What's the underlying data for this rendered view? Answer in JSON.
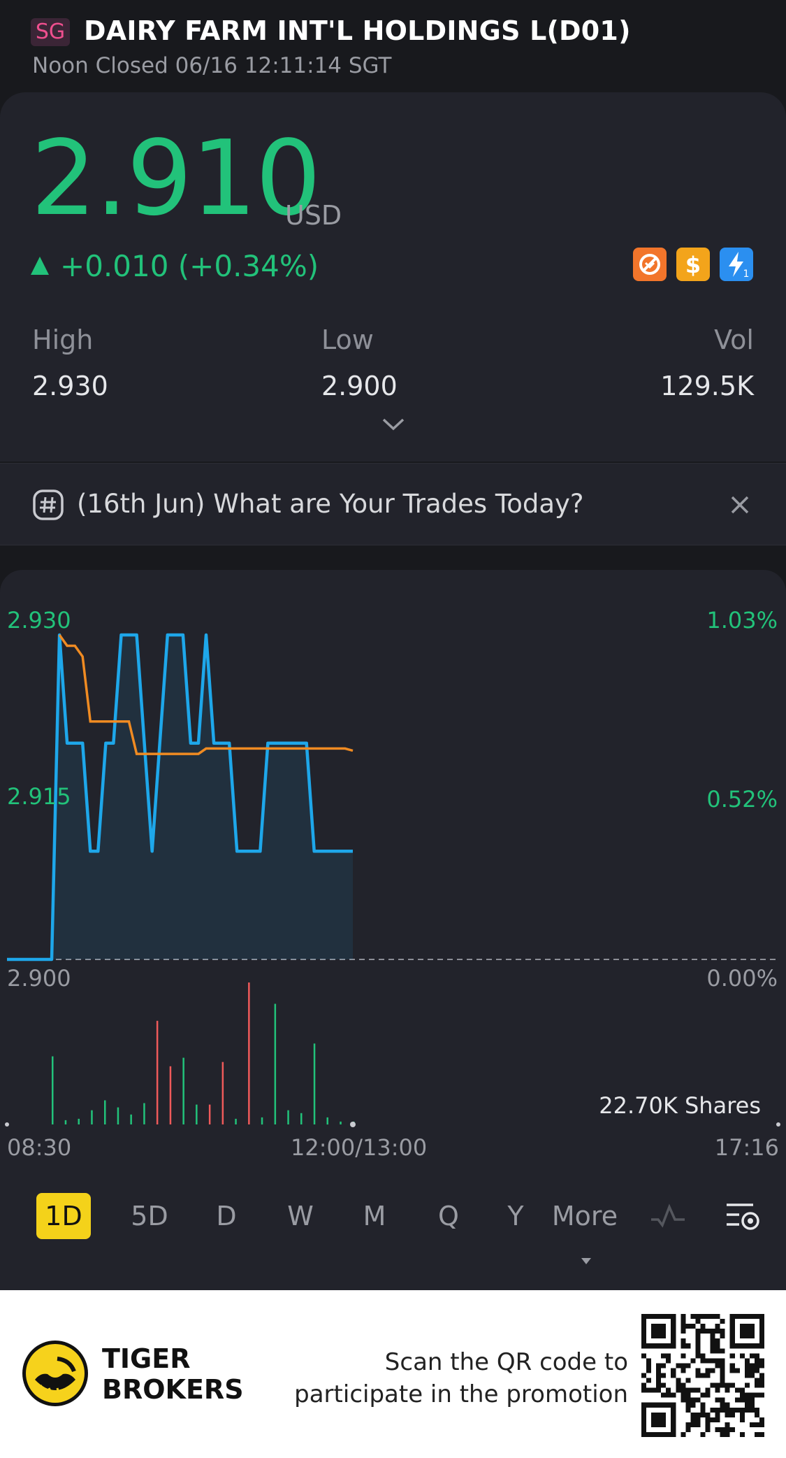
{
  "header": {
    "market_badge": "SG",
    "title": "DAIRY FARM INT'L HOLDINGS L(D01)",
    "status": "Noon Closed 06/16 12:11:14 SGT"
  },
  "quote": {
    "price": "2.910",
    "currency": "USD",
    "change": "+0.010 (+0.34%)",
    "up_color": "#22c27a",
    "badges": [
      "no-short-icon",
      "dollar-icon",
      "flash-icon"
    ]
  },
  "stats": [
    {
      "label": "High",
      "value": "2.930"
    },
    {
      "label": "Low",
      "value": "2.900"
    },
    {
      "label": "Vol",
      "value": "129.5K"
    }
  ],
  "promo_banner": {
    "text": "(16th Jun) What are Your Trades Today?"
  },
  "chart_data": {
    "type": "line",
    "y_left_ticks": [
      "2.930",
      "2.915",
      "2.900"
    ],
    "y_right_ticks": [
      "1.03%",
      "0.52%",
      "0.00%"
    ],
    "x_ticks": [
      "08:30",
      "12:00/13:00",
      "17:16"
    ],
    "ylim": [
      2.9,
      2.93
    ],
    "baseline": 2.9,
    "series": [
      {
        "color": "#1ea7ea",
        "values": [
          2.9,
          2.93,
          2.92,
          2.92,
          2.92,
          2.91,
          2.91,
          2.92,
          2.92,
          2.93,
          2.93,
          2.93,
          2.92,
          2.91,
          2.92,
          2.93,
          2.93,
          2.93,
          2.92,
          2.92,
          2.93,
          2.92,
          2.92,
          2.92,
          2.91,
          2.91,
          2.91,
          2.91,
          2.92,
          2.92,
          2.92,
          2.92,
          2.92,
          2.92,
          2.91,
          2.91,
          2.91,
          2.91,
          2.91,
          2.91
        ]
      },
      {
        "color": "#f08b22",
        "values": [
          2.9,
          2.93,
          2.929,
          2.929,
          2.928,
          2.922,
          2.922,
          2.922,
          2.922,
          2.922,
          2.922,
          2.919,
          2.919,
          2.919,
          2.919,
          2.919,
          2.919,
          2.919,
          2.919,
          2.919,
          2.9195,
          2.9195,
          2.9195,
          2.9195,
          2.9195,
          2.9195,
          2.9195,
          2.9195,
          2.9195,
          2.9195,
          2.9195,
          2.9195,
          2.9195,
          2.9195,
          2.9195,
          2.9195,
          2.9195,
          2.9195,
          2.9195,
          2.9193
        ]
      }
    ],
    "volume_label": "22.70K Shares",
    "volume_colors": {
      "up": "#22c27a",
      "down": "#ef5a5a"
    },
    "volume": [
      {
        "v": 0.48,
        "c": "up"
      },
      {
        "v": 0.03,
        "c": "up"
      },
      {
        "v": 0.04,
        "c": "up"
      },
      {
        "v": 0.1,
        "c": "up"
      },
      {
        "v": 0.17,
        "c": "up"
      },
      {
        "v": 0.12,
        "c": "up"
      },
      {
        "v": 0.07,
        "c": "up"
      },
      {
        "v": 0.15,
        "c": "up"
      },
      {
        "v": 0.73,
        "c": "down"
      },
      {
        "v": 0.41,
        "c": "down"
      },
      {
        "v": 0.47,
        "c": "up"
      },
      {
        "v": 0.14,
        "c": "up"
      },
      {
        "v": 0.14,
        "c": "down"
      },
      {
        "v": 0.44,
        "c": "down"
      },
      {
        "v": 0.04,
        "c": "up"
      },
      {
        "v": 1.0,
        "c": "down"
      },
      {
        "v": 0.05,
        "c": "up"
      },
      {
        "v": 0.85,
        "c": "up"
      },
      {
        "v": 0.1,
        "c": "up"
      },
      {
        "v": 0.08,
        "c": "up"
      },
      {
        "v": 0.57,
        "c": "up"
      },
      {
        "v": 0.05,
        "c": "up"
      },
      {
        "v": 0.02,
        "c": "up"
      },
      {
        "v": 0.02,
        "c": "up"
      }
    ]
  },
  "periods": [
    "1D",
    "5D",
    "D",
    "W",
    "M",
    "Q",
    "Y",
    "More"
  ],
  "active_period": "1D",
  "footer": {
    "brand_line1": "TIGER",
    "brand_line2": "BROKERS",
    "scan_line1": "Scan the QR code to",
    "scan_line2": "participate in the promotion"
  }
}
